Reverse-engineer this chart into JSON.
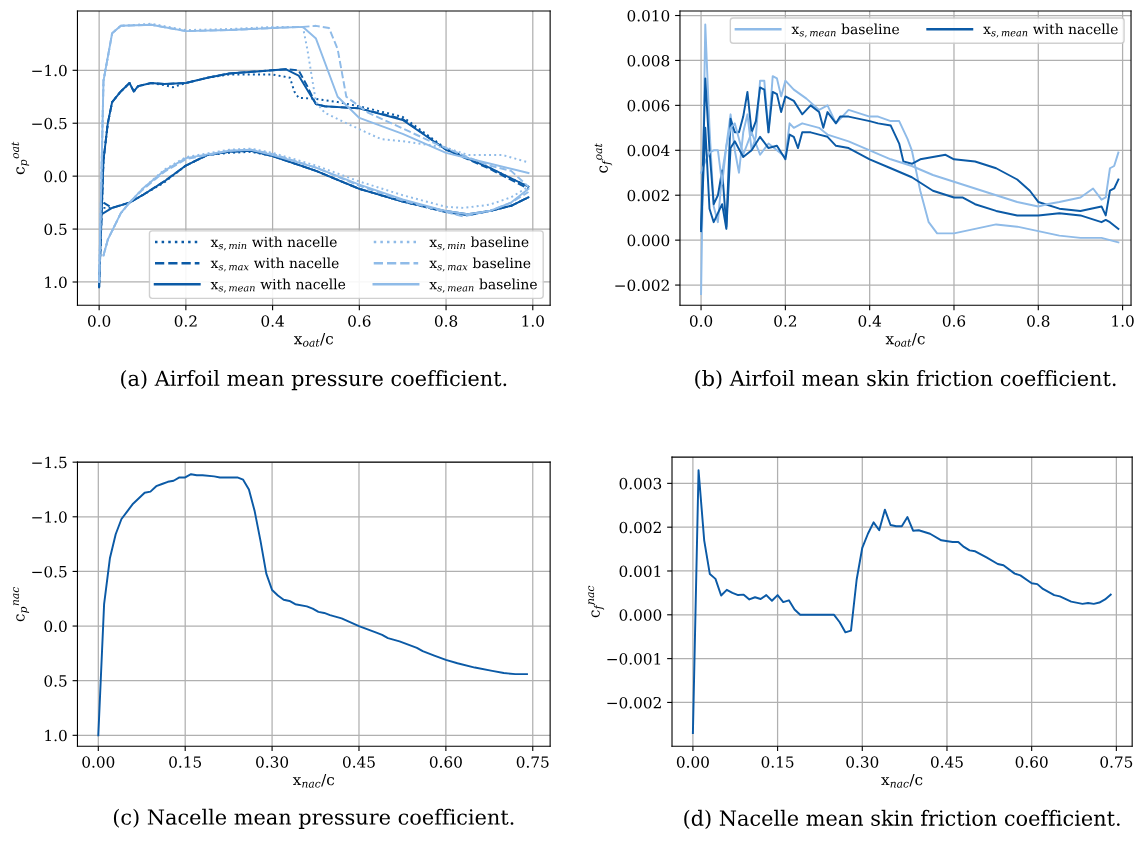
{
  "chart_data": [
    {
      "type": "line",
      "title": "(a) Airfoil mean pressure coefficient.",
      "xlabel": "x$_{oat}$/c",
      "ylabel": "c$_{p}$$^{oat}$",
      "xlim": [
        -0.05,
        1.04
      ],
      "ylim": [
        1.22,
        -1.56
      ],
      "xticks": [
        {
          "value": 0,
          "label": "0.0"
        },
        {
          "value": 0.2,
          "label": "0.2"
        },
        {
          "value": 0.4,
          "label": "0.4"
        },
        {
          "value": 0.6,
          "label": "0.6"
        },
        {
          "value": 0.8,
          "label": "0.8"
        },
        {
          "value": 1.0,
          "label": "1.0"
        }
      ],
      "yticks": [
        {
          "value": -1.0,
          "label": "−1.0"
        },
        {
          "value": -0.5,
          "label": "−0.5"
        },
        {
          "value": 0,
          "label": "0.0"
        },
        {
          "value": 0.5,
          "label": "0.5"
        },
        {
          "value": 1.0,
          "label": "1.0"
        }
      ],
      "grid": true,
      "legend": "bottom right",
      "series": [
        {
          "name": "x$_{s,min}$ with nacelle",
          "color": "#0b5aa6",
          "line_style": "dotted",
          "x": [
            0,
            0.01,
            0.02,
            0.03,
            0.05,
            0.07,
            0.08,
            0.09,
            0.12,
            0.15,
            0.17,
            0.2,
            0.25,
            0.3,
            0.4,
            0.44,
            0.45,
            0.46,
            0.5,
            0.55,
            0.6,
            0.7,
            0.8,
            0.9,
            0.99
          ],
          "values": [
            1.05,
            -0.15,
            -0.5,
            -0.7,
            -0.8,
            -0.88,
            -0.8,
            -0.85,
            -0.88,
            -0.86,
            -0.84,
            -0.88,
            -0.93,
            -0.96,
            -0.96,
            -0.93,
            -0.8,
            -0.74,
            -0.73,
            -0.7,
            -0.66,
            -0.56,
            -0.26,
            -0.08,
            0.1
          ]
        },
        {
          "name": "x$_{s,max}$ with nacelle",
          "color": "#0b5aa6",
          "line_style": "dashed",
          "x": [
            0,
            0.01,
            0.02,
            0.03,
            0.05,
            0.07,
            0.08,
            0.09,
            0.12,
            0.15,
            0.2,
            0.25,
            0.3,
            0.4,
            0.43,
            0.46,
            0.48,
            0.5,
            0.52,
            0.6,
            0.7,
            0.8,
            0.9,
            0.99
          ],
          "values": [
            1.05,
            -0.15,
            -0.5,
            -0.7,
            -0.8,
            -0.88,
            -0.8,
            -0.85,
            -0.88,
            -0.87,
            -0.88,
            -0.93,
            -0.97,
            -1.0,
            -1.01,
            -1.0,
            -0.85,
            -0.68,
            -0.66,
            -0.64,
            -0.54,
            -0.25,
            -0.07,
            0.12
          ]
        },
        {
          "name": "x$_{s,mean}$ with nacelle",
          "color": "#0b5aa6",
          "line_style": "solid",
          "x": [
            0,
            0.01,
            0.02,
            0.03,
            0.05,
            0.07,
            0.08,
            0.09,
            0.12,
            0.15,
            0.2,
            0.25,
            0.3,
            0.4,
            0.43,
            0.46,
            0.5,
            0.52,
            0.6,
            0.7,
            0.8,
            0.9,
            0.99
          ],
          "values": [
            1.05,
            -0.15,
            -0.5,
            -0.7,
            -0.8,
            -0.88,
            -0.8,
            -0.85,
            -0.88,
            -0.87,
            -0.88,
            -0.93,
            -0.97,
            -1.0,
            -1.01,
            -0.95,
            -0.68,
            -0.66,
            -0.64,
            -0.53,
            -0.25,
            -0.08,
            0.1
          ]
        },
        {
          "name": "x$_{s,min}$ baseline",
          "color": "#8fbbe8",
          "line_style": "dotted",
          "x": [
            0,
            0.01,
            0.03,
            0.05,
            0.12,
            0.2,
            0.3,
            0.4,
            0.47,
            0.48,
            0.5,
            0.52,
            0.57,
            0.65,
            0.7,
            0.8,
            0.85,
            0.9,
            0.93,
            0.99
          ],
          "values": [
            1.0,
            -0.9,
            -1.35,
            -1.42,
            -1.44,
            -1.38,
            -1.39,
            -1.41,
            -1.41,
            -1.2,
            -0.7,
            -0.6,
            -0.5,
            -0.35,
            -0.33,
            -0.27,
            -0.2,
            -0.2,
            -0.2,
            -0.13
          ]
        },
        {
          "name": "x$_{s,max}$ baseline",
          "color": "#8fbbe8",
          "line_style": "dashed",
          "x": [
            0,
            0.01,
            0.03,
            0.05,
            0.12,
            0.2,
            0.3,
            0.4,
            0.47,
            0.5,
            0.53,
            0.55,
            0.57,
            0.62,
            0.7,
            0.78,
            0.85,
            0.9,
            0.95,
            0.99
          ],
          "values": [
            1.0,
            -0.9,
            -1.35,
            -1.42,
            -1.43,
            -1.37,
            -1.38,
            -1.4,
            -1.41,
            -1.42,
            -1.4,
            -1.2,
            -0.75,
            -0.6,
            -0.45,
            -0.3,
            -0.18,
            -0.1,
            -0.05,
            0.1
          ]
        },
        {
          "name": "x$_{s,mean}$ baseline",
          "color": "#8fbbe8",
          "line_style": "solid",
          "x": [
            0,
            0.01,
            0.03,
            0.05,
            0.12,
            0.2,
            0.3,
            0.4,
            0.47,
            0.5,
            0.55,
            0.6,
            0.7,
            0.8,
            0.9,
            0.99
          ],
          "values": [
            1.0,
            -0.9,
            -1.35,
            -1.42,
            -1.43,
            -1.37,
            -1.38,
            -1.4,
            -1.41,
            -1.3,
            -0.75,
            -0.55,
            -0.4,
            -0.22,
            -0.12,
            -0.03
          ]
        },
        {
          "color": "#0b5aa6",
          "line_style": "dotted",
          "x": [
            0.01,
            0.03,
            0.07,
            0.1,
            0.15,
            0.2,
            0.25,
            0.3,
            0.35,
            0.4,
            0.5,
            0.6,
            0.7,
            0.8,
            0.85,
            0.9,
            0.95,
            0.99
          ],
          "values": [
            0.3,
            0.3,
            0.25,
            0.18,
            0.06,
            -0.1,
            -0.2,
            -0.22,
            -0.23,
            -0.19,
            -0.05,
            0.12,
            0.24,
            0.34,
            0.37,
            0.33,
            0.28,
            0.2
          ]
        },
        {
          "color": "#0b5aa6",
          "line_style": "dashed",
          "x": [
            0.01,
            0.03,
            0.07,
            0.1,
            0.15,
            0.2,
            0.25,
            0.3,
            0.35,
            0.4,
            0.5,
            0.6,
            0.7,
            0.8,
            0.85,
            0.9,
            0.95,
            0.99
          ],
          "values": [
            0.25,
            0.3,
            0.25,
            0.18,
            0.05,
            -0.1,
            -0.2,
            -0.23,
            -0.24,
            -0.19,
            -0.05,
            0.12,
            0.24,
            0.34,
            0.37,
            0.33,
            0.28,
            0.2
          ]
        },
        {
          "color": "#0b5aa6",
          "line_style": "solid",
          "x": [
            0.01,
            0.03,
            0.07,
            0.1,
            0.15,
            0.2,
            0.25,
            0.3,
            0.35,
            0.4,
            0.5,
            0.6,
            0.7,
            0.8,
            0.85,
            0.9,
            0.95,
            0.99
          ],
          "values": [
            0.35,
            0.3,
            0.25,
            0.18,
            0.05,
            -0.1,
            -0.2,
            -0.23,
            -0.24,
            -0.19,
            -0.05,
            0.12,
            0.24,
            0.33,
            0.36,
            0.33,
            0.28,
            0.2
          ]
        },
        {
          "color": "#8fbbe8",
          "line_style": "dotted",
          "x": [
            0.01,
            0.02,
            0.05,
            0.07,
            0.1,
            0.15,
            0.2,
            0.3,
            0.35,
            0.4,
            0.5,
            0.6,
            0.7,
            0.8,
            0.84,
            0.9,
            0.95,
            0.99
          ],
          "values": [
            0.75,
            0.6,
            0.35,
            0.25,
            0.12,
            -0.06,
            -0.18,
            -0.25,
            -0.26,
            -0.22,
            -0.1,
            0.05,
            0.18,
            0.29,
            0.3,
            0.27,
            0.2,
            0.1
          ]
        },
        {
          "color": "#8fbbe8",
          "line_style": "dashed",
          "x": [
            0.01,
            0.02,
            0.05,
            0.07,
            0.1,
            0.15,
            0.2,
            0.3,
            0.35,
            0.4,
            0.5,
            0.6,
            0.7,
            0.8,
            0.84,
            0.9,
            0.95,
            0.99
          ],
          "values": [
            0.75,
            0.6,
            0.35,
            0.25,
            0.13,
            -0.04,
            -0.16,
            -0.24,
            -0.25,
            -0.21,
            -0.08,
            0.09,
            0.23,
            0.34,
            0.38,
            0.33,
            0.25,
            0.15
          ]
        },
        {
          "color": "#8fbbe8",
          "line_style": "solid",
          "x": [
            0.01,
            0.02,
            0.05,
            0.07,
            0.1,
            0.15,
            0.2,
            0.3,
            0.35,
            0.4,
            0.5,
            0.6,
            0.7,
            0.8,
            0.85,
            0.9,
            0.95,
            0.99
          ],
          "values": [
            0.75,
            0.6,
            0.35,
            0.25,
            0.12,
            -0.05,
            -0.17,
            -0.24,
            -0.25,
            -0.2,
            -0.08,
            0.08,
            0.22,
            0.33,
            0.36,
            0.33,
            0.25,
            0.12
          ]
        }
      ]
    },
    {
      "type": "line",
      "title": "(b) Airfoil mean skin friction coefficient.",
      "xlabel": "x$_{oat}$/c",
      "ylabel": "c$_{f}$$^{oat}$",
      "xlim": [
        -0.05,
        1.02
      ],
      "ylim": [
        -0.0029,
        0.0102
      ],
      "xticks": [
        {
          "value": 0,
          "label": "0.0"
        },
        {
          "value": 0.2,
          "label": "0.2"
        },
        {
          "value": 0.4,
          "label": "0.4"
        },
        {
          "value": 0.6,
          "label": "0.6"
        },
        {
          "value": 0.8,
          "label": "0.8"
        },
        {
          "value": 1.0,
          "label": "1.0"
        }
      ],
      "yticks": [
        {
          "value": -0.002,
          "label": "−0.002"
        },
        {
          "value": 0,
          "label": "0.000"
        },
        {
          "value": 0.002,
          "label": "0.002"
        },
        {
          "value": 0.004,
          "label": "0.004"
        },
        {
          "value": 0.006,
          "label": "0.006"
        },
        {
          "value": 0.008,
          "label": "0.008"
        },
        {
          "value": 0.01,
          "label": "0.010"
        }
      ],
      "grid": true,
      "legend": "top right",
      "series": [
        {
          "name": "x$_{s,mean}$ baseline",
          "color": "#8fbbe8",
          "line_style": "solid",
          "x": [
            0,
            0.01,
            0.02,
            0.03,
            0.04,
            0.05,
            0.06,
            0.07,
            0.08,
            0.09,
            0.1,
            0.11,
            0.12,
            0.13,
            0.14,
            0.15,
            0.16,
            0.17,
            0.18,
            0.19,
            0.2,
            0.22,
            0.25,
            0.28,
            0.3,
            0.32,
            0.35,
            0.4,
            0.42,
            0.45,
            0.47,
            0.49,
            0.5,
            0.52,
            0.54,
            0.56,
            0.6,
            0.65,
            0.7,
            0.75,
            0.8,
            0.85,
            0.9,
            0.95,
            0.99
          ],
          "values": [
            -0.0024,
            0.0096,
            0.005,
            0.0015,
            0.0008,
            0.003,
            0.0042,
            0.0056,
            0.004,
            0.003,
            0.0048,
            0.0056,
            0.004,
            0.0046,
            0.0071,
            0.0071,
            0.0048,
            0.0073,
            0.0072,
            0.0064,
            0.0071,
            0.0067,
            0.0063,
            0.0058,
            0.006,
            0.0052,
            0.0058,
            0.0055,
            0.0055,
            0.0053,
            0.0053,
            0.0045,
            0.004,
            0.0022,
            0.0008,
            0.0003,
            0.0003,
            0.0005,
            0.0007,
            0.0006,
            0.0004,
            0.0002,
            0.0001,
            0.0001,
            -0.0001
          ]
        },
        {
          "name": "x$_{s,mean}$ with nacelle",
          "color": "#0b5aa6",
          "line_style": "solid",
          "x": [
            0,
            0.01,
            0.02,
            0.03,
            0.04,
            0.05,
            0.06,
            0.07,
            0.08,
            0.09,
            0.1,
            0.11,
            0.12,
            0.13,
            0.14,
            0.15,
            0.16,
            0.17,
            0.18,
            0.19,
            0.2,
            0.22,
            0.24,
            0.26,
            0.28,
            0.29,
            0.3,
            0.32,
            0.33,
            0.35,
            0.4,
            0.42,
            0.45,
            0.47,
            0.48,
            0.5,
            0.52,
            0.55,
            0.58,
            0.6,
            0.65,
            0.7,
            0.75,
            0.78,
            0.8,
            0.85,
            0.9,
            0.95,
            0.96,
            0.97,
            0.98,
            0.99
          ],
          "values": [
            0.0005,
            0.0072,
            0.004,
            0.0016,
            0.002,
            0.0031,
            0.0006,
            0.0054,
            0.0048,
            0.0048,
            0.0055,
            0.0066,
            0.0048,
            0.0053,
            0.0068,
            0.0067,
            0.0048,
            0.0066,
            0.0065,
            0.0057,
            0.0064,
            0.0062,
            0.0056,
            0.006,
            0.0057,
            0.005,
            0.0057,
            0.0052,
            0.0055,
            0.0055,
            0.0053,
            0.0052,
            0.0051,
            0.0043,
            0.0035,
            0.0034,
            0.0036,
            0.0037,
            0.0038,
            0.0036,
            0.0035,
            0.0032,
            0.0027,
            0.0022,
            0.0017,
            0.0014,
            0.0013,
            0.0015,
            0.0011,
            0.0022,
            0.0023,
            0.0027
          ]
        },
        {
          "color": "#8fbbe8",
          "line_style": "solid",
          "x": [
            0.0,
            0.01,
            0.02,
            0.03,
            0.04,
            0.05,
            0.06,
            0.07,
            0.08,
            0.1,
            0.12,
            0.14,
            0.16,
            0.18,
            0.2,
            0.21,
            0.22,
            0.24,
            0.26,
            0.28,
            0.3,
            0.35,
            0.4,
            0.45,
            0.5,
            0.55,
            0.6,
            0.65,
            0.7,
            0.75,
            0.8,
            0.82,
            0.85,
            0.9,
            0.93,
            0.95,
            0.96,
            0.97,
            0.98,
            0.99
          ],
          "values": [
            0.003,
            0.0035,
            0.0039,
            0.004,
            0.004,
            0.0025,
            0.0042,
            0.005,
            0.0052,
            0.0038,
            0.0048,
            0.0038,
            0.0043,
            0.004,
            0.0037,
            0.0052,
            0.005,
            0.0052,
            0.0051,
            0.005,
            0.0047,
            0.0044,
            0.004,
            0.0036,
            0.0033,
            0.0029,
            0.0026,
            0.0023,
            0.002,
            0.0017,
            0.0015,
            0.0016,
            0.0017,
            0.0019,
            0.0023,
            0.0018,
            0.0019,
            0.0032,
            0.0033,
            0.0039
          ]
        },
        {
          "color": "#0b5aa6",
          "line_style": "solid",
          "x": [
            0,
            0.01,
            0.02,
            0.03,
            0.04,
            0.05,
            0.06,
            0.07,
            0.08,
            0.1,
            0.12,
            0.14,
            0.16,
            0.18,
            0.2,
            0.21,
            0.22,
            0.23,
            0.24,
            0.26,
            0.28,
            0.3,
            0.32,
            0.35,
            0.4,
            0.45,
            0.5,
            0.55,
            0.6,
            0.62,
            0.65,
            0.7,
            0.75,
            0.8,
            0.85,
            0.9,
            0.95,
            0.96,
            0.97,
            0.99
          ],
          "values": [
            0.0004,
            0.005,
            0.0014,
            0.0008,
            0.0012,
            0.0016,
            0.0005,
            0.0041,
            0.0044,
            0.0037,
            0.004,
            0.0046,
            0.0041,
            0.0042,
            0.0036,
            0.0047,
            0.0046,
            0.0041,
            0.0048,
            0.0048,
            0.0047,
            0.0046,
            0.0042,
            0.0041,
            0.0036,
            0.0032,
            0.0028,
            0.0022,
            0.0019,
            0.0019,
            0.0016,
            0.0013,
            0.0011,
            0.0011,
            0.0012,
            0.0011,
            0.0008,
            0.0009,
            0.0008,
            0.0005
          ]
        }
      ]
    },
    {
      "type": "line",
      "title": "(c) Nacelle mean pressure coefficient.",
      "xlabel": "x$_{nac}$/c",
      "ylabel": "c$_{p}$$^{nac}$",
      "xlim": [
        -0.036,
        0.78
      ],
      "ylim": [
        1.1,
        -1.5
      ],
      "xticks": [
        {
          "value": 0,
          "label": "0.00"
        },
        {
          "value": 0.15,
          "label": "0.15"
        },
        {
          "value": 0.3,
          "label": "0.30"
        },
        {
          "value": 0.45,
          "label": "0.45"
        },
        {
          "value": 0.6,
          "label": "0.60"
        },
        {
          "value": 0.75,
          "label": "0.75"
        }
      ],
      "yticks": [
        {
          "value": -1.5,
          "label": "−1.5"
        },
        {
          "value": -1.0,
          "label": "−1.0"
        },
        {
          "value": -0.5,
          "label": "−0.5"
        },
        {
          "value": 0,
          "label": "0.0"
        },
        {
          "value": 0.5,
          "label": "0.5"
        },
        {
          "value": 1.0,
          "label": "1.0"
        }
      ],
      "grid": true,
      "x": [
        0,
        0.01,
        0.02,
        0.03,
        0.04,
        0.05,
        0.06,
        0.07,
        0.08,
        0.09,
        0.1,
        0.11,
        0.12,
        0.13,
        0.14,
        0.15,
        0.16,
        0.17,
        0.18,
        0.2,
        0.21,
        0.24,
        0.25,
        0.26,
        0.27,
        0.28,
        0.29,
        0.3,
        0.31,
        0.32,
        0.33,
        0.34,
        0.36,
        0.37,
        0.38,
        0.39,
        0.4,
        0.42,
        0.45,
        0.48,
        0.49,
        0.5,
        0.52,
        0.55,
        0.56,
        0.58,
        0.6,
        0.62,
        0.65,
        0.68,
        0.7,
        0.72,
        0.74
      ],
      "series": [
        {
          "color": "#0b5aa6",
          "values": [
            1.0,
            -0.2,
            -0.62,
            -0.84,
            -0.98,
            -1.05,
            -1.12,
            -1.17,
            -1.22,
            -1.23,
            -1.28,
            -1.3,
            -1.32,
            -1.33,
            -1.36,
            -1.36,
            -1.39,
            -1.38,
            -1.38,
            -1.37,
            -1.36,
            -1.36,
            -1.34,
            -1.25,
            -1.05,
            -0.78,
            -0.48,
            -0.33,
            -0.28,
            -0.24,
            -0.23,
            -0.2,
            -0.18,
            -0.16,
            -0.13,
            -0.12,
            -0.1,
            -0.07,
            0.0,
            0.06,
            0.08,
            0.11,
            0.14,
            0.2,
            0.23,
            0.27,
            0.31,
            0.34,
            0.38,
            0.41,
            0.43,
            0.44,
            0.44
          ]
        }
      ]
    },
    {
      "type": "line",
      "title": "(d) Nacelle mean skin friction coefficient.",
      "xlabel": "x$_{nac}$/c",
      "ylabel": "c$_{f}$$^{nac}$",
      "xlim": [
        -0.037,
        0.778
      ],
      "ylim": [
        -0.003,
        0.0036
      ],
      "xticks": [
        {
          "value": 0,
          "label": "0.00"
        },
        {
          "value": 0.15,
          "label": "0.15"
        },
        {
          "value": 0.3,
          "label": "0.30"
        },
        {
          "value": 0.45,
          "label": "0.45"
        },
        {
          "value": 0.6,
          "label": "0.60"
        },
        {
          "value": 0.75,
          "label": "0.75"
        }
      ],
      "yticks": [
        {
          "value": -0.002,
          "label": "−0.002"
        },
        {
          "value": -0.001,
          "label": "−0.001"
        },
        {
          "value": 0,
          "label": "0.000"
        },
        {
          "value": 0.001,
          "label": "0.001"
        },
        {
          "value": 0.002,
          "label": "0.002"
        },
        {
          "value": 0.003,
          "label": "0.003"
        }
      ],
      "grid": true,
      "x": [
        0,
        0.01,
        0.02,
        0.03,
        0.04,
        0.05,
        0.06,
        0.07,
        0.08,
        0.09,
        0.1,
        0.11,
        0.12,
        0.13,
        0.14,
        0.15,
        0.16,
        0.17,
        0.18,
        0.19,
        0.2,
        0.21,
        0.22,
        0.23,
        0.24,
        0.25,
        0.26,
        0.27,
        0.28,
        0.29,
        0.3,
        0.31,
        0.32,
        0.33,
        0.34,
        0.35,
        0.36,
        0.37,
        0.38,
        0.39,
        0.4,
        0.42,
        0.44,
        0.46,
        0.47,
        0.48,
        0.49,
        0.5,
        0.52,
        0.54,
        0.55,
        0.57,
        0.58,
        0.6,
        0.61,
        0.62,
        0.64,
        0.65,
        0.67,
        0.69,
        0.7,
        0.71,
        0.72,
        0.73,
        0.74
      ],
      "series": [
        {
          "color": "#0b5aa6",
          "values": [
            -0.0027,
            0.0033,
            0.0017,
            0.00093,
            0.00082,
            0.00044,
            0.00057,
            0.0005,
            0.00045,
            0.00046,
            0.00035,
            0.0004,
            0.00036,
            0.00045,
            0.00032,
            0.00045,
            0.00029,
            0.00033,
            0.00012,
            0.0,
            0.0,
            0.0,
            0.0,
            0.0,
            0.0,
            0.0,
            -0.00017,
            -0.0004,
            -0.00036,
            0.0008,
            0.00153,
            0.00185,
            0.00211,
            0.00193,
            0.0024,
            0.00205,
            0.00202,
            0.00202,
            0.00223,
            0.00192,
            0.00193,
            0.00185,
            0.0017,
            0.00166,
            0.00166,
            0.00155,
            0.00147,
            0.00145,
            0.00131,
            0.00116,
            0.00113,
            0.00094,
            0.0009,
            0.00072,
            0.0007,
            0.00059,
            0.00045,
            0.00042,
            0.0003,
            0.00025,
            0.00027,
            0.00025,
            0.00028,
            0.00035,
            0.00046
          ]
        }
      ]
    }
  ]
}
